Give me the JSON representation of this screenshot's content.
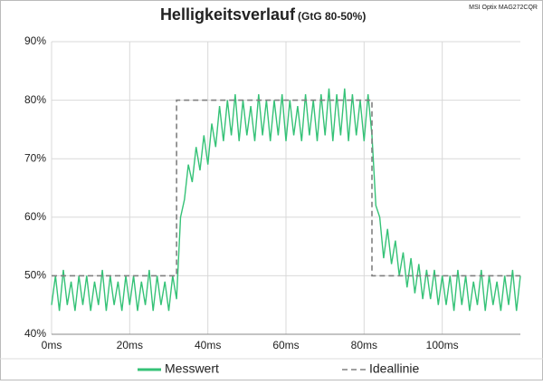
{
  "chart_data": {
    "type": "line",
    "title": "Helligkeitsverlauf",
    "subtitle": "(GtG 80-50%)",
    "annotation": "MSI Optix MAG272CQR",
    "xlim": [
      0,
      120
    ],
    "ylim": [
      40,
      90
    ],
    "xticks": [
      {
        "value": 0,
        "label": "0ms"
      },
      {
        "value": 20,
        "label": "20ms"
      },
      {
        "value": 40,
        "label": "40ms"
      },
      {
        "value": 60,
        "label": "60ms"
      },
      {
        "value": 80,
        "label": "80ms"
      },
      {
        "value": 100,
        "label": "100ms"
      }
    ],
    "yticks": [
      {
        "value": 40,
        "label": "40%"
      },
      {
        "value": 50,
        "label": "50%"
      },
      {
        "value": 60,
        "label": "60%"
      },
      {
        "value": 70,
        "label": "70%"
      },
      {
        "value": 80,
        "label": "80%"
      },
      {
        "value": 90,
        "label": "90%"
      }
    ],
    "grid": true,
    "legend": "bottom",
    "series": [
      {
        "name": "Messwert",
        "color": "#35c277",
        "dash": false,
        "x": [
          0,
          1,
          2,
          3,
          4,
          5,
          6,
          7,
          8,
          9,
          10,
          11,
          12,
          13,
          14,
          15,
          16,
          17,
          18,
          19,
          20,
          21,
          22,
          23,
          24,
          25,
          26,
          27,
          28,
          29,
          30,
          31,
          32,
          33,
          34,
          35,
          36,
          37,
          38,
          39,
          40,
          41,
          42,
          43,
          44,
          45,
          46,
          47,
          48,
          49,
          50,
          51,
          52,
          53,
          54,
          55,
          56,
          57,
          58,
          59,
          60,
          61,
          62,
          63,
          64,
          65,
          66,
          67,
          68,
          69,
          70,
          71,
          72,
          73,
          74,
          75,
          76,
          77,
          78,
          79,
          80,
          81,
          82,
          83,
          84,
          85,
          86,
          87,
          88,
          89,
          90,
          91,
          92,
          93,
          94,
          95,
          96,
          97,
          98,
          99,
          100,
          101,
          102,
          103,
          104,
          105,
          106,
          107,
          108,
          109,
          110,
          111,
          112,
          113,
          114,
          115,
          116,
          117,
          118,
          119,
          120
        ],
        "values": [
          45,
          50,
          44,
          51,
          45,
          49,
          44,
          50,
          45,
          50,
          44,
          49,
          45,
          51,
          44,
          50,
          45,
          49,
          44,
          50,
          45,
          50,
          44,
          49,
          45,
          51,
          44,
          50,
          45,
          49,
          44,
          50,
          46,
          60,
          63,
          69,
          66,
          72,
          68,
          74,
          69,
          76,
          72,
          79,
          73,
          80,
          74,
          81,
          73,
          80,
          74,
          79,
          73,
          81,
          74,
          80,
          73,
          80,
          74,
          81,
          73,
          80,
          74,
          79,
          73,
          81,
          74,
          80,
          73,
          81,
          74,
          82,
          73,
          81,
          74,
          82,
          73,
          81,
          74,
          80,
          73,
          81,
          74,
          62,
          60,
          53,
          58,
          52,
          56,
          50,
          54,
          48,
          53,
          47,
          52,
          46,
          51,
          46,
          51,
          45,
          50,
          45,
          50,
          44,
          51,
          45,
          50,
          44,
          49,
          45,
          51,
          44,
          50,
          45,
          49,
          44,
          50,
          45,
          51,
          44,
          50
        ]
      },
      {
        "name": "Ideallinie",
        "color": "#808080",
        "dash": true,
        "x": [
          0,
          32,
          32,
          82,
          82,
          120
        ],
        "values": [
          50,
          50,
          80,
          80,
          50,
          50
        ]
      }
    ]
  }
}
